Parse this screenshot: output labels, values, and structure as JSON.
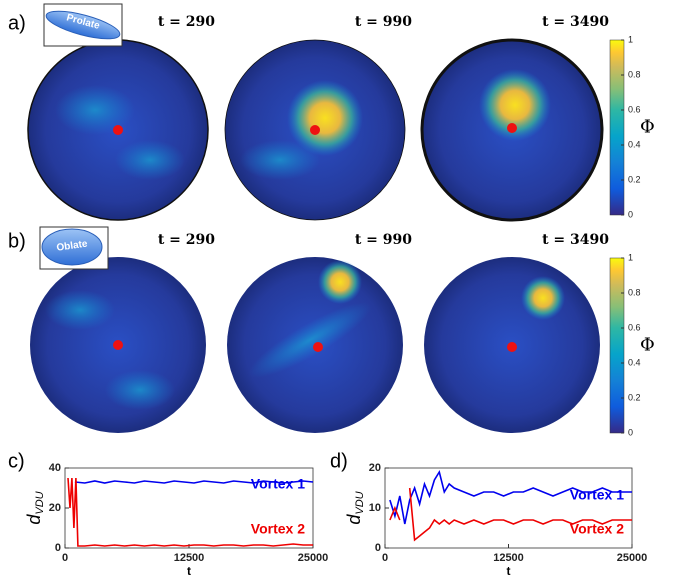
{
  "panels": [
    {
      "label": "a)",
      "badge": "Prolate",
      "times": [
        "t = 290",
        "t = 990",
        "t = 3490"
      ]
    },
    {
      "label": "b)",
      "badge": "Oblate",
      "times": [
        "t = 290",
        "t = 990",
        "t = 3490"
      ]
    }
  ],
  "colorbar": {
    "label": "Φ",
    "ylim": [
      0,
      1
    ],
    "yticks": [
      0,
      0.2,
      0.4,
      0.6,
      0.8,
      1
    ]
  },
  "chart_data": [
    {
      "type": "line",
      "label": "c)",
      "ylabel": "d",
      "ylabel_subscript": "VDU",
      "xlabel": "t",
      "xlim": [
        0,
        25000
      ],
      "xticks": [
        0,
        12500,
        25000
      ],
      "ylim": [
        0,
        40
      ],
      "yticks": [
        0,
        20,
        40
      ],
      "series": [
        {
          "name": "Vortex 1",
          "color": "#0000ee",
          "x": [
            1000,
            2000,
            3000,
            4000,
            5000,
            6000,
            7000,
            8000,
            9000,
            10000,
            11000,
            12000,
            13000,
            14000,
            15000,
            16000,
            17000,
            18000,
            19000,
            20000,
            21000,
            22000,
            23000,
            24000,
            25000
          ],
          "values": [
            33,
            32.5,
            33.5,
            32.5,
            33.5,
            33,
            32.5,
            33.5,
            33,
            32.5,
            33.5,
            33,
            32.5,
            33.5,
            33,
            32.5,
            33.5,
            33,
            32.5,
            33.5,
            33,
            32.5,
            33,
            33.5,
            33
          ]
        },
        {
          "name": "Vortex 2",
          "color": "#ee0000",
          "x": [
            300,
            500,
            700,
            900,
            1100,
            1300,
            2000,
            3000,
            4000,
            5000,
            6000,
            7000,
            8000,
            9000,
            10000,
            11000,
            12000,
            13000,
            14000,
            15000,
            16000,
            17000,
            18000,
            19000,
            20000,
            21000,
            22000,
            23000,
            24000,
            25000
          ],
          "values": [
            35,
            20,
            35,
            10,
            35,
            1,
            1,
            1.5,
            1,
            1.5,
            1,
            1.5,
            1,
            1.5,
            1,
            1.5,
            1,
            1.5,
            1.5,
            1,
            1.5,
            1.5,
            1,
            1.5,
            1.5,
            1,
            1.5,
            2,
            1.5,
            1.5
          ]
        }
      ]
    },
    {
      "type": "line",
      "label": "d)",
      "ylabel": "d",
      "ylabel_subscript": "VDU",
      "xlabel": "t",
      "xlim": [
        0,
        25000
      ],
      "xticks": [
        0,
        12500,
        25000
      ],
      "ylim": [
        0,
        20
      ],
      "yticks": [
        0,
        10,
        20
      ],
      "series": [
        {
          "name": "Vortex 1",
          "color": "#0000ee",
          "x": [
            500,
            1000,
            1500,
            2000,
            2500,
            3000,
            3500,
            4000,
            4500,
            5000,
            5500,
            6000,
            6500,
            7000,
            8000,
            9000,
            10000,
            11000,
            12000,
            13000,
            14000,
            15000,
            16000,
            17000,
            18000,
            19000,
            20000,
            21000,
            22000,
            23000,
            24000,
            25000
          ],
          "values": [
            12,
            8,
            13,
            6,
            12,
            15,
            11,
            16,
            13,
            17,
            19,
            14,
            16,
            15,
            14,
            13,
            14,
            14,
            13,
            14,
            14,
            15,
            14,
            13,
            14,
            15,
            14,
            14,
            15,
            14,
            14,
            14
          ]
        },
        {
          "name": "Vortex 2",
          "color": "#ee0000",
          "x": [
            500,
            1000,
            1500,
            2000,
            2500,
            3000,
            3500,
            4000,
            4500,
            5000,
            5500,
            6000,
            6500,
            7000,
            8000,
            9000,
            10000,
            11000,
            12000,
            13000,
            14000,
            15000,
            16000,
            17000,
            18000,
            19000,
            20000,
            21000,
            22000,
            23000,
            24000,
            25000
          ],
          "values": [
            7,
            10,
            7,
            null,
            15,
            2,
            3,
            4,
            5,
            7,
            6,
            7,
            6,
            7,
            6,
            7,
            6,
            7,
            7,
            6,
            7,
            7,
            6,
            7,
            7,
            6,
            7,
            7,
            6,
            7,
            7,
            7
          ]
        }
      ]
    }
  ]
}
